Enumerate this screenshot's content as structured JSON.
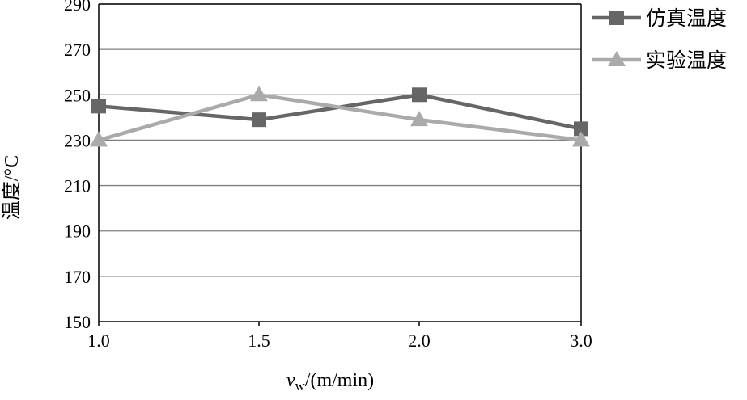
{
  "chart_data": {
    "type": "line",
    "categories": [
      "1.0",
      "1.5",
      "2.0",
      "3.0"
    ],
    "series": [
      {
        "name": "仿真温度",
        "values": [
          245,
          239,
          250,
          235
        ],
        "color": "#666666",
        "marker": "square"
      },
      {
        "name": "实验温度",
        "values": [
          230,
          250,
          239,
          230
        ],
        "color": "#aaaaaa",
        "marker": "triangle"
      }
    ],
    "xlabel_symbol": "v",
    "xlabel_subscript": "w",
    "xlabel_unit": "/(m/min)",
    "ylabel": "温度/°C",
    "ylim": [
      150,
      290
    ],
    "yticks": [
      150,
      170,
      190,
      210,
      230,
      250,
      270,
      290
    ],
    "grid": true,
    "legend_position": "top-right"
  }
}
